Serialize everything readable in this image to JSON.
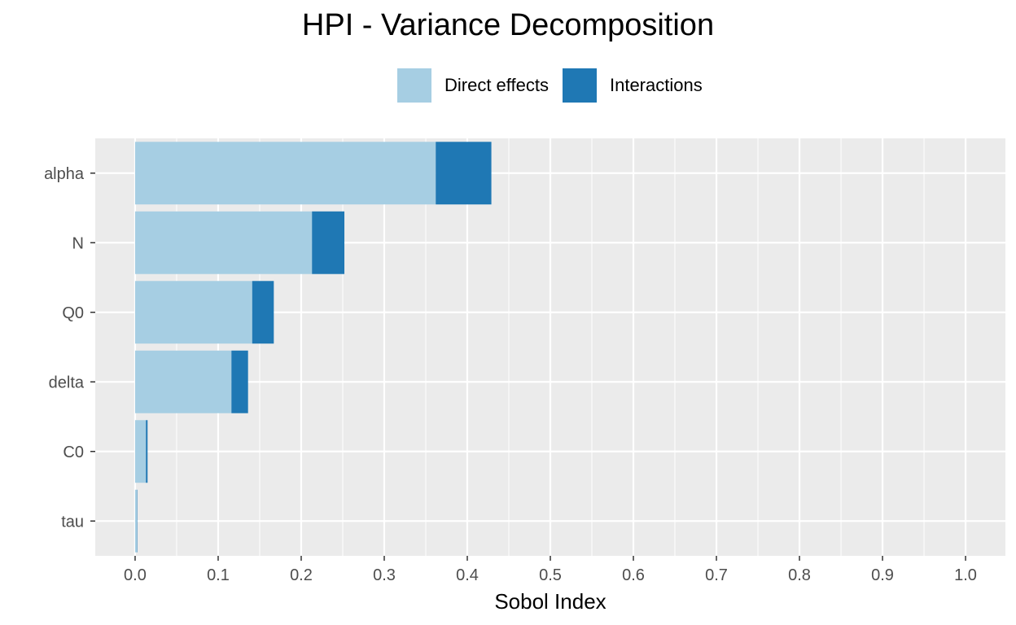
{
  "chart_data": {
    "type": "bar",
    "orientation": "horizontal",
    "stacked": true,
    "title": "HPI - Variance Decomposition",
    "xlabel": "Sobol Index",
    "ylabel": "",
    "categories": [
      "alpha",
      "N",
      "Q0",
      "delta",
      "C0",
      "tau"
    ],
    "series": [
      {
        "name": "Direct effects",
        "color": "#a6cee3",
        "values": [
          0.362,
          0.213,
          0.141,
          0.116,
          0.013,
          0.002
        ]
      },
      {
        "name": "Interactions",
        "color": "#1f78b4",
        "values": [
          0.067,
          0.039,
          0.026,
          0.02,
          0.002,
          0.0003
        ]
      }
    ],
    "xlim": [
      -0.048,
      1.048
    ],
    "xticks": [
      0.0,
      0.1,
      0.2,
      0.3,
      0.4,
      0.5,
      0.6,
      0.7,
      0.8,
      0.9,
      1.0
    ],
    "xtick_labels": [
      "0.0",
      "0.1",
      "0.2",
      "0.3",
      "0.4",
      "0.5",
      "0.6",
      "0.7",
      "0.8",
      "0.9",
      "1.0"
    ],
    "grid": true,
    "legend_position": "top",
    "panel_color": "#ebebeb",
    "grid_color": "#ffffff"
  }
}
